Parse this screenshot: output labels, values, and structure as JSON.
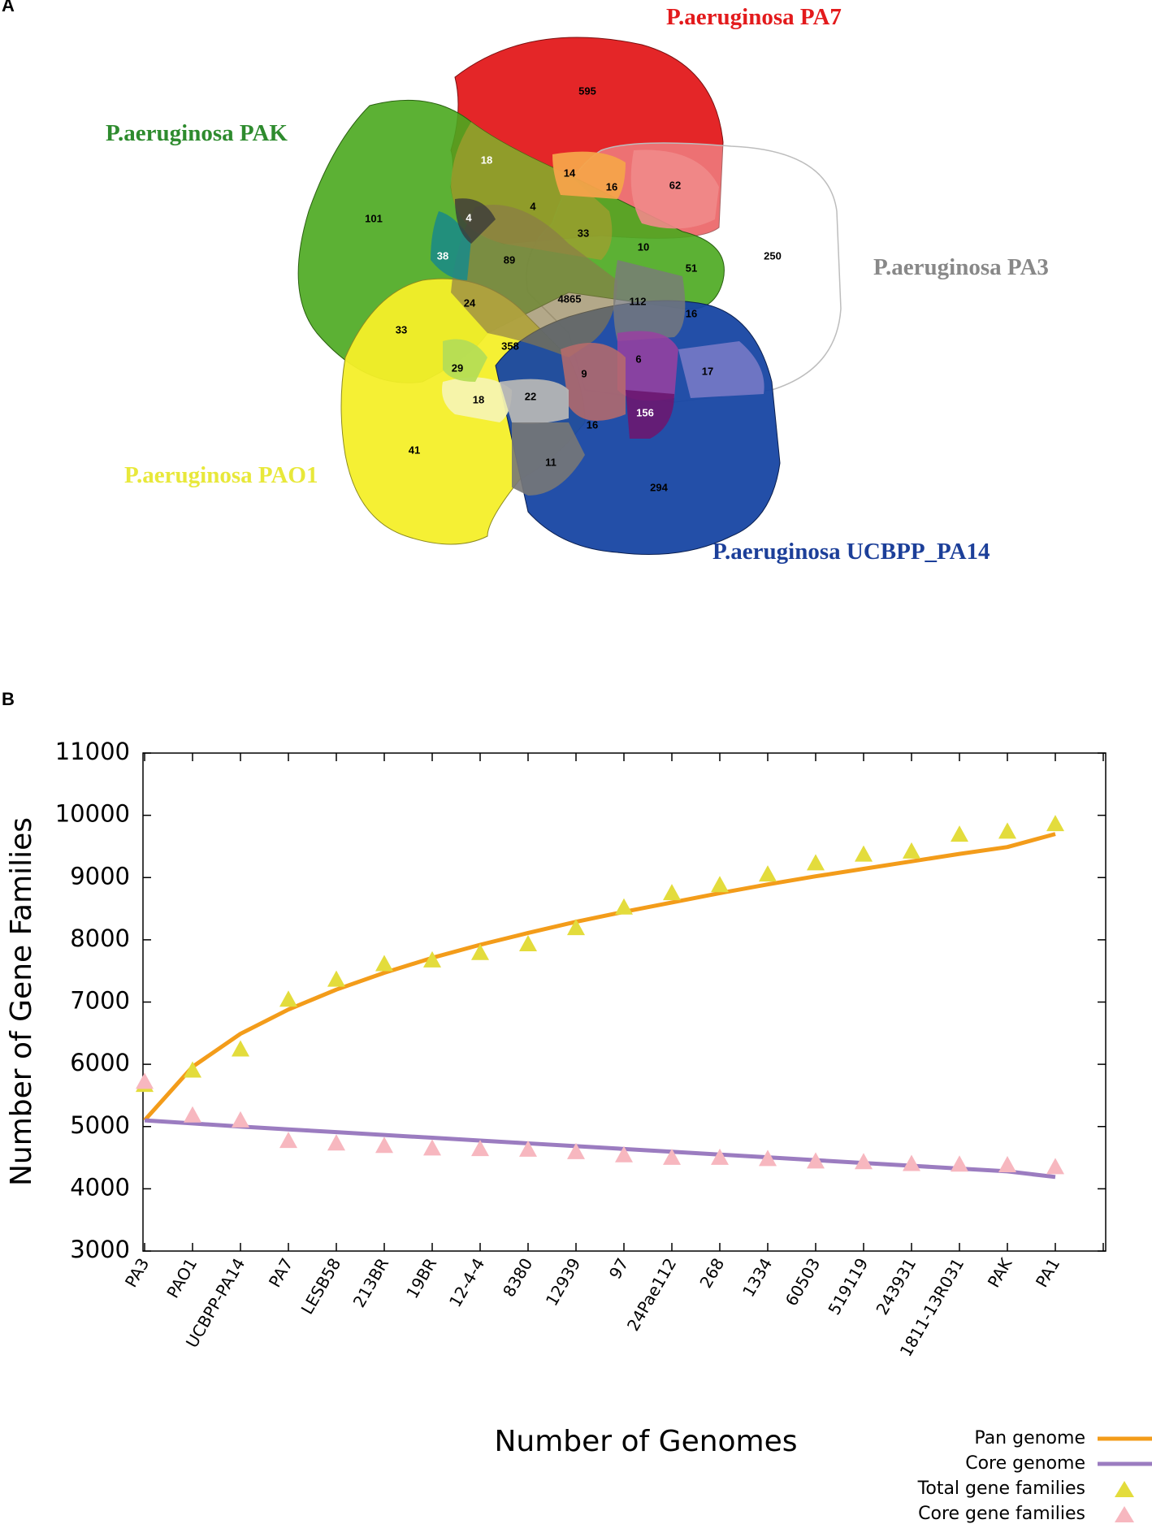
{
  "venn": {
    "panel_label": "A",
    "sets": [
      {
        "name": "P.aeruginosa PA7",
        "color": "#e31a1c"
      },
      {
        "name": "P.aeruginosa PAK",
        "color": "#2e8b2e"
      },
      {
        "name": "P.aeruginosa PA3",
        "color": "#888888"
      },
      {
        "name": "P.aeruginosa PAO1",
        "color": "#e8e83a"
      },
      {
        "name": "P.aeruginosa UCBPP_PA14",
        "color": "#1c3f99"
      }
    ],
    "regions": [
      "595",
      "18",
      "14",
      "16",
      "62",
      "101",
      "4",
      "4",
      "33",
      "38",
      "89",
      "10",
      "51",
      "250",
      "4865",
      "112",
      "24",
      "16",
      "33",
      "358",
      "29",
      "6",
      "17",
      "9",
      "18",
      "22",
      "156",
      "16",
      "41",
      "11",
      "294"
    ]
  },
  "chart_data": {
    "panel_label": "B",
    "type": "line",
    "categories": [
      "PA3",
      "PAO1",
      "UCBPP-PA14",
      "PA7",
      "LESB58",
      "213BR",
      "19BR",
      "12-4-4",
      "8380",
      "12939",
      "97",
      "24Pae112",
      "268",
      "1334",
      "60503",
      "519119",
      "243931",
      "1811-13R031",
      "PAK",
      "PA1"
    ],
    "xlabel": "Number of Genomes",
    "ylabel": "Number of Gene Families",
    "ylim": [
      3000,
      11000
    ],
    "yticks": [
      "3000",
      "4000",
      "5000",
      "6000",
      "7000",
      "8000",
      "9000",
      "10000",
      "11000"
    ],
    "series": [
      {
        "name": "Pan genome",
        "kind": "line",
        "color": "#f39c1a",
        "values": [
          5100,
          5960,
          6490,
          6880,
          7200,
          7470,
          7710,
          7920,
          8110,
          8290,
          8450,
          8600,
          8750,
          8890,
          9020,
          9140,
          9260,
          9380,
          9490,
          9700
        ]
      },
      {
        "name": "Core genome",
        "kind": "line",
        "color": "#9b7cc0",
        "values": [
          5100,
          5050,
          5000,
          4955,
          4910,
          4865,
          4820,
          4775,
          4730,
          4685,
          4640,
          4595,
          4550,
          4505,
          4460,
          4415,
          4370,
          4325,
          4280,
          4190
        ]
      },
      {
        "name": "Total gene families",
        "kind": "marker",
        "color": "#e3dc3c",
        "values": [
          5660,
          5890,
          6230,
          7030,
          7350,
          7600,
          7660,
          7780,
          7920,
          8180,
          8510,
          8740,
          8870,
          9040,
          9220,
          9360,
          9410,
          9680,
          9730,
          9850
        ]
      },
      {
        "name": "Core gene families",
        "kind": "marker",
        "color": "#f7b7bf",
        "values": [
          5710,
          5170,
          5090,
          4760,
          4720,
          4680,
          4640,
          4630,
          4620,
          4580,
          4530,
          4490,
          4490,
          4470,
          4430,
          4420,
          4390,
          4380,
          4370,
          4340
        ]
      }
    ],
    "legend_position": "bottom-right"
  }
}
